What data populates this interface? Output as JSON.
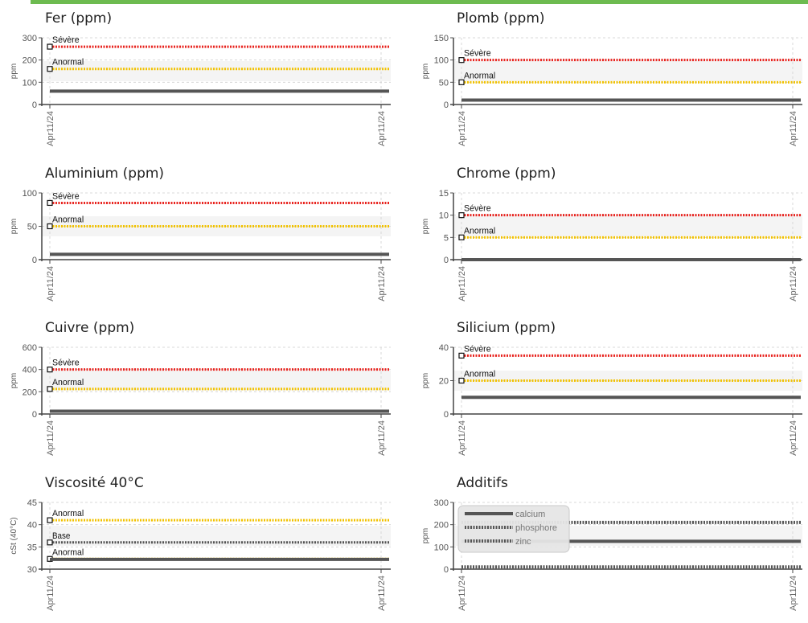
{
  "chart_data": [
    {
      "type": "line",
      "title": "Fer (ppm)",
      "ylabel": "ppm",
      "ylim": [
        0,
        300
      ],
      "yticks": [
        0,
        100,
        200,
        300
      ],
      "x": [
        "Apr11/24",
        "Apr11/24"
      ],
      "series": [
        {
          "values": [
            60,
            60
          ],
          "color": "#555555",
          "style": "solid"
        }
      ],
      "reference_lines": [
        {
          "label": "Sévère",
          "value": 260,
          "color": "#e8231e"
        },
        {
          "label": "Anormal",
          "value": 160,
          "color": "#f2c200"
        }
      ]
    },
    {
      "type": "line",
      "title": "Plomb (ppm)",
      "ylabel": "ppm",
      "ylim": [
        0,
        150
      ],
      "yticks": [
        0,
        50,
        100,
        150
      ],
      "x": [
        "Apr11/24",
        "Apr11/24"
      ],
      "series": [
        {
          "values": [
            10,
            10
          ],
          "color": "#555555",
          "style": "solid"
        }
      ],
      "reference_lines": [
        {
          "label": "Sévère",
          "value": 100,
          "color": "#e8231e"
        },
        {
          "label": "Anormal",
          "value": 50,
          "color": "#f2c200"
        }
      ]
    },
    {
      "type": "line",
      "title": "Aluminium (ppm)",
      "ylabel": "ppm",
      "ylim": [
        0,
        100
      ],
      "yticks": [
        0,
        50,
        100
      ],
      "x": [
        "Apr11/24",
        "Apr11/24"
      ],
      "series": [
        {
          "values": [
            8,
            8
          ],
          "color": "#555555",
          "style": "solid"
        }
      ],
      "reference_lines": [
        {
          "label": "Sévère",
          "value": 85,
          "color": "#e8231e"
        },
        {
          "label": "Anormal",
          "value": 50,
          "color": "#f2c200"
        }
      ]
    },
    {
      "type": "line",
      "title": "Chrome (ppm)",
      "ylabel": "ppm",
      "ylim": [
        0,
        15
      ],
      "yticks": [
        0,
        5,
        10,
        15
      ],
      "x": [
        "Apr11/24",
        "Apr11/24"
      ],
      "series": [
        {
          "values": [
            0,
            0
          ],
          "color": "#555555",
          "style": "solid"
        }
      ],
      "reference_lines": [
        {
          "label": "Sévère",
          "value": 10,
          "color": "#e8231e"
        },
        {
          "label": "Anormal",
          "value": 5,
          "color": "#f2c200"
        }
      ]
    },
    {
      "type": "line",
      "title": "Cuivre (ppm)",
      "ylabel": "ppm",
      "ylim": [
        0,
        600
      ],
      "yticks": [
        0,
        200,
        400,
        600
      ],
      "x": [
        "Apr11/24",
        "Apr11/24"
      ],
      "series": [
        {
          "values": [
            25,
            25
          ],
          "color": "#555555",
          "style": "solid"
        }
      ],
      "reference_lines": [
        {
          "label": "Sévère",
          "value": 400,
          "color": "#e8231e"
        },
        {
          "label": "Anormal",
          "value": 225,
          "color": "#f2c200"
        }
      ]
    },
    {
      "type": "line",
      "title": "Silicium (ppm)",
      "ylabel": "ppm",
      "ylim": [
        0,
        40
      ],
      "yticks": [
        0,
        20,
        40
      ],
      "x": [
        "Apr11/24",
        "Apr11/24"
      ],
      "series": [
        {
          "values": [
            10,
            10
          ],
          "color": "#555555",
          "style": "solid"
        }
      ],
      "reference_lines": [
        {
          "label": "Sévère",
          "value": 35,
          "color": "#e8231e"
        },
        {
          "label": "Anormal",
          "value": 20,
          "color": "#f2c200"
        }
      ]
    },
    {
      "type": "line",
      "title": "Viscosité 40°C",
      "ylabel": "cSt (40°C)",
      "ylim": [
        30,
        45
      ],
      "yticks": [
        30,
        35,
        40,
        45
      ],
      "x": [
        "Apr11/24",
        "Apr11/24"
      ],
      "series": [
        {
          "values": [
            32.2,
            32.2
          ],
          "color": "#555555",
          "style": "solid"
        }
      ],
      "reference_lines": [
        {
          "label": "Anormal",
          "value": 41,
          "color": "#f2c200"
        },
        {
          "label": "Base",
          "value": 36,
          "color": "#555555"
        },
        {
          "label": "Anormal",
          "value": 32.3,
          "color": "#f2c200"
        }
      ]
    },
    {
      "type": "line",
      "title": "Additifs",
      "ylabel": "ppm",
      "ylim": [
        0,
        300
      ],
      "yticks": [
        0,
        100,
        200,
        300
      ],
      "x": [
        "Apr11/24",
        "Apr11/24"
      ],
      "series": [
        {
          "name": "calcium",
          "values": [
            125,
            125
          ],
          "color": "#555555",
          "style": "solid"
        },
        {
          "name": "phosphore",
          "values": [
            210,
            210
          ],
          "color": "#555555",
          "style": "dotted"
        },
        {
          "name": "zinc",
          "values": [
            10,
            10
          ],
          "color": "#555555",
          "style": "dotted"
        }
      ],
      "reference_lines": []
    }
  ]
}
